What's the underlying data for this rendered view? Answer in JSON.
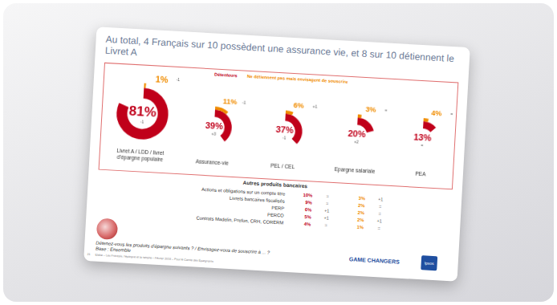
{
  "title": "Au total, 4 Français sur 10 possèdent une assurance vie, et 8 sur 10 détiennent le Livret A",
  "legend_items": [
    {
      "name": "Détenteurs",
      "color": "#c0001a"
    },
    {
      "name": "Ne détiennent pas mais envisagent de souscrire",
      "color": "#f08c00"
    }
  ],
  "chart_data": [
    {
      "type": "doughnut",
      "title": "Livret A / LDD / livret d'épargne populaire",
      "values": [
        81,
        1
      ],
      "value_labels": [
        "81%",
        "1%"
      ],
      "changes": [
        "-1",
        "-1"
      ],
      "ylim": [
        0,
        100
      ],
      "data_labels": true
    },
    {
      "type": "doughnut",
      "title": "Assurance-vie",
      "values": [
        39,
        11
      ],
      "value_labels": [
        "39%",
        "11%"
      ],
      "changes": [
        "+3",
        "-1"
      ],
      "ylim": [
        0,
        100
      ],
      "data_labels": true
    },
    {
      "type": "doughnut",
      "title": "PEL / CEL",
      "values": [
        37,
        6
      ],
      "value_labels": [
        "37%",
        "6%"
      ],
      "changes": [
        "-1",
        "+1"
      ],
      "ylim": [
        0,
        100
      ],
      "data_labels": true
    },
    {
      "type": "doughnut",
      "title": "Epargne salariale",
      "values": [
        20,
        3
      ],
      "value_labels": [
        "20%",
        "3%"
      ],
      "changes": [
        "+2",
        "="
      ],
      "ylim": [
        0,
        100
      ],
      "data_labels": true
    },
    {
      "type": "doughnut",
      "title": "PEA",
      "values": [
        13,
        4
      ],
      "value_labels": [
        "13%",
        "4%"
      ],
      "changes": [
        "=",
        "="
      ],
      "ylim": [
        0,
        100
      ],
      "data_labels": true
    }
  ],
  "table": {
    "title": "Autres produits bancaires",
    "rows": [
      [
        "Actions et obligations sur un compte titre",
        "10%",
        "=",
        "3%",
        "+1"
      ],
      [
        "Livrets bancaires fiscalisés",
        "9%",
        "=",
        "2%",
        "="
      ],
      [
        "PERP",
        "6%",
        "+1",
        "2%",
        "="
      ],
      [
        "PERCO",
        "5%",
        "+1",
        "2%",
        "+1"
      ],
      [
        "Contrats Madelin, Prefon, CRH, CORERM",
        "4%",
        "=",
        "1%",
        "="
      ]
    ]
  },
  "question": "Détenez-vous les produits d'épargne suivants ? / Envisagez-vous de souscrire à ... ?",
  "base": "Base : Ensemble",
  "footer": "Elabe – Les Français, l'épargne et la retraite – Février 2018 – Pour le Cercle des Épargnants",
  "page": "21",
  "brand": "GAME CHANGERS",
  "logo": "Ipsos"
}
